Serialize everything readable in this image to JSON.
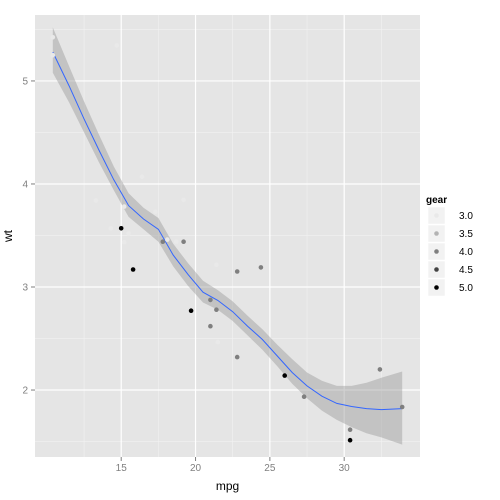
{
  "chart_data": {
    "type": "scatter",
    "title": "",
    "xlabel": "mpg",
    "ylabel": "wt",
    "xlim": [
      9.2,
      35.1
    ],
    "ylim": [
      1.35,
      5.64
    ],
    "x_ticks": [
      15,
      20,
      25,
      30
    ],
    "y_ticks": [
      2,
      3,
      4,
      5
    ],
    "grid": true,
    "legend": {
      "title": "gear",
      "placement": "right",
      "entries": [
        {
          "label": "3.0",
          "value": 3.0,
          "color": "#e9e9e9"
        },
        {
          "label": "3.5",
          "value": 3.5,
          "color": "#b3b3b3"
        },
        {
          "label": "4.0",
          "value": 4.0,
          "color": "#7f7f7f"
        },
        {
          "label": "4.5",
          "value": 4.5,
          "color": "#444444"
        },
        {
          "label": "5.0",
          "value": 5.0,
          "color": "#000000"
        }
      ]
    },
    "series": [
      {
        "type": "points",
        "points": [
          {
            "x": 21.0,
            "y": 2.62,
            "gear": 4
          },
          {
            "x": 21.0,
            "y": 2.875,
            "gear": 4
          },
          {
            "x": 22.8,
            "y": 2.32,
            "gear": 4
          },
          {
            "x": 21.4,
            "y": 3.215,
            "gear": 3
          },
          {
            "x": 18.7,
            "y": 3.44,
            "gear": 3
          },
          {
            "x": 18.1,
            "y": 3.46,
            "gear": 3
          },
          {
            "x": 14.3,
            "y": 3.57,
            "gear": 3
          },
          {
            "x": 24.4,
            "y": 3.19,
            "gear": 4
          },
          {
            "x": 22.8,
            "y": 3.15,
            "gear": 4
          },
          {
            "x": 19.2,
            "y": 3.44,
            "gear": 4
          },
          {
            "x": 17.8,
            "y": 3.44,
            "gear": 4
          },
          {
            "x": 16.4,
            "y": 4.07,
            "gear": 3
          },
          {
            "x": 17.3,
            "y": 3.73,
            "gear": 3
          },
          {
            "x": 15.2,
            "y": 3.78,
            "gear": 3
          },
          {
            "x": 10.4,
            "y": 5.25,
            "gear": 3
          },
          {
            "x": 10.4,
            "y": 5.424,
            "gear": 3
          },
          {
            "x": 14.7,
            "y": 5.345,
            "gear": 3
          },
          {
            "x": 32.4,
            "y": 2.2,
            "gear": 4
          },
          {
            "x": 30.4,
            "y": 1.615,
            "gear": 4
          },
          {
            "x": 33.9,
            "y": 1.835,
            "gear": 4
          },
          {
            "x": 21.5,
            "y": 2.465,
            "gear": 3
          },
          {
            "x": 15.5,
            "y": 3.52,
            "gear": 3
          },
          {
            "x": 15.2,
            "y": 3.435,
            "gear": 3
          },
          {
            "x": 13.3,
            "y": 3.84,
            "gear": 3
          },
          {
            "x": 19.2,
            "y": 3.845,
            "gear": 3
          },
          {
            "x": 27.3,
            "y": 1.935,
            "gear": 4
          },
          {
            "x": 26.0,
            "y": 2.14,
            "gear": 5
          },
          {
            "x": 30.4,
            "y": 1.513,
            "gear": 5
          },
          {
            "x": 15.8,
            "y": 3.17,
            "gear": 5
          },
          {
            "x": 19.7,
            "y": 2.77,
            "gear": 5
          },
          {
            "x": 15.0,
            "y": 3.57,
            "gear": 5
          },
          {
            "x": 21.4,
            "y": 2.78,
            "gear": 4
          }
        ]
      },
      {
        "type": "smooth",
        "color": "#3366ff",
        "band_color": "#999999",
        "x": [
          10.4,
          11.5,
          12.5,
          13.5,
          14.5,
          15.5,
          16.5,
          17.5,
          18.5,
          19.5,
          20.5,
          21.5,
          22.5,
          23.5,
          24.5,
          25.5,
          26.5,
          27.5,
          28.5,
          29.5,
          30.5,
          31.5,
          32.5,
          33.9
        ],
        "y": [
          5.28,
          4.95,
          4.63,
          4.33,
          4.04,
          3.79,
          3.66,
          3.56,
          3.31,
          3.12,
          2.95,
          2.87,
          2.76,
          2.62,
          2.49,
          2.33,
          2.17,
          2.04,
          1.94,
          1.87,
          1.84,
          1.82,
          1.81,
          1.82
        ],
        "lower": [
          5.08,
          4.79,
          4.5,
          4.21,
          3.94,
          3.68,
          3.56,
          3.44,
          3.2,
          3.01,
          2.85,
          2.78,
          2.67,
          2.53,
          2.39,
          2.23,
          2.06,
          1.92,
          1.8,
          1.71,
          1.64,
          1.58,
          1.54,
          1.47
        ],
        "upper": [
          5.52,
          5.14,
          4.8,
          4.48,
          4.17,
          3.91,
          3.77,
          3.67,
          3.42,
          3.23,
          3.06,
          2.97,
          2.86,
          2.72,
          2.59,
          2.44,
          2.3,
          2.17,
          2.09,
          2.04,
          2.04,
          2.07,
          2.12,
          2.18
        ]
      }
    ]
  }
}
